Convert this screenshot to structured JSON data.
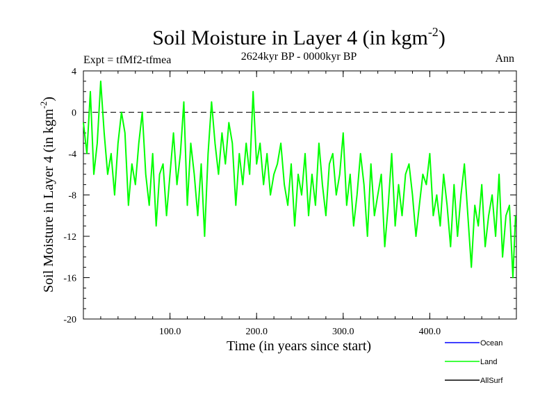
{
  "chart_data": {
    "type": "line",
    "title": "Soil Moisture in Layer 4 (in kgm",
    "title_sup": "-2",
    "title_close": ")",
    "subtitle_left": "Expt = tfMf2-tfmea",
    "subtitle_center": "2624kyr BP - 0000kyr BP",
    "subtitle_right": "Ann",
    "xlabel": "Time (in years since start)",
    "ylabel": "Soil Moisture in Layer 4 (in kgm",
    "ylabel_sup": "-2",
    "ylabel_close": ")",
    "xlim": [
      0,
      500
    ],
    "ylim": [
      -20,
      4
    ],
    "x_ticks": [
      100,
      200,
      300,
      400
    ],
    "x_tick_labels": [
      "100.0",
      "200.0",
      "300.0",
      "400.0"
    ],
    "y_ticks": [
      4,
      0,
      -4,
      -8,
      -12,
      -16,
      -20
    ],
    "y_tick_labels": [
      "4",
      "0",
      "-4",
      "-8",
      "-12",
      "-16",
      "-20"
    ],
    "reference_line": 0,
    "series": [
      {
        "name": "Land",
        "color": "#00ff00",
        "x": [
          0,
          4,
          8,
          12,
          16,
          20,
          24,
          28,
          32,
          36,
          40,
          44,
          48,
          52,
          56,
          60,
          64,
          68,
          72,
          76,
          80,
          84,
          88,
          92,
          96,
          100,
          104,
          108,
          112,
          116,
          120,
          124,
          128,
          132,
          136,
          140,
          144,
          148,
          152,
          156,
          160,
          164,
          168,
          172,
          176,
          180,
          184,
          188,
          192,
          196,
          200,
          204,
          208,
          212,
          216,
          220,
          224,
          228,
          232,
          236,
          240,
          244,
          248,
          252,
          256,
          260,
          264,
          268,
          272,
          276,
          280,
          284,
          288,
          292,
          296,
          300,
          304,
          308,
          312,
          316,
          320,
          324,
          328,
          332,
          336,
          340,
          344,
          348,
          352,
          356,
          360,
          364,
          368,
          372,
          376,
          380,
          384,
          388,
          392,
          396,
          400,
          404,
          408,
          412,
          416,
          420,
          424,
          428,
          432,
          436,
          440,
          444,
          448,
          452,
          456,
          460,
          464,
          468,
          472,
          476,
          480,
          484,
          488,
          492,
          496,
          499
        ],
        "values": [
          -1,
          -4,
          2,
          -6,
          -3,
          3,
          -2,
          -6,
          -4,
          -8,
          -3,
          0,
          -2,
          -9,
          -5,
          -7,
          -3,
          0,
          -6,
          -9,
          -4,
          -11,
          -6,
          -5,
          -10,
          -6,
          -2,
          -7,
          -4,
          1,
          -9,
          -3,
          -6,
          -10,
          -5,
          -12,
          -4,
          1,
          -3,
          -6,
          -2,
          -5,
          -1,
          -3,
          -9,
          -4,
          -7,
          -3,
          -6,
          2,
          -5,
          -3,
          -7,
          -4,
          -8,
          -6,
          -5,
          -3,
          -7,
          -9,
          -5,
          -11,
          -6,
          -8,
          -4,
          -10,
          -6,
          -9,
          -3,
          -7,
          -10,
          -5,
          -4,
          -8,
          -6,
          -2,
          -9,
          -6,
          -11,
          -8,
          -4,
          -7,
          -12,
          -5,
          -10,
          -8,
          -6,
          -13,
          -9,
          -4,
          -11,
          -7,
          -10,
          -6,
          -5,
          -8,
          -12,
          -9,
          -6,
          -7,
          -4,
          -10,
          -8,
          -11,
          -6,
          -9,
          -13,
          -7,
          -12,
          -8,
          -5,
          -10,
          -15,
          -9,
          -11,
          -7,
          -13,
          -10,
          -8,
          -12,
          -6,
          -14,
          -10,
          -9,
          -16,
          -10
        ]
      },
      {
        "name": "Ocean",
        "color": "#0000ff",
        "x": [],
        "values": []
      },
      {
        "name": "AllSurf",
        "color": "#000000",
        "x": [],
        "values": []
      }
    ],
    "legend": [
      {
        "name": "Ocean",
        "color": "#0000ff"
      },
      {
        "name": "Land",
        "color": "#00ff00"
      },
      {
        "name": "AllSurf",
        "color": "#000000"
      }
    ],
    "legend_position": "bottom-right"
  }
}
